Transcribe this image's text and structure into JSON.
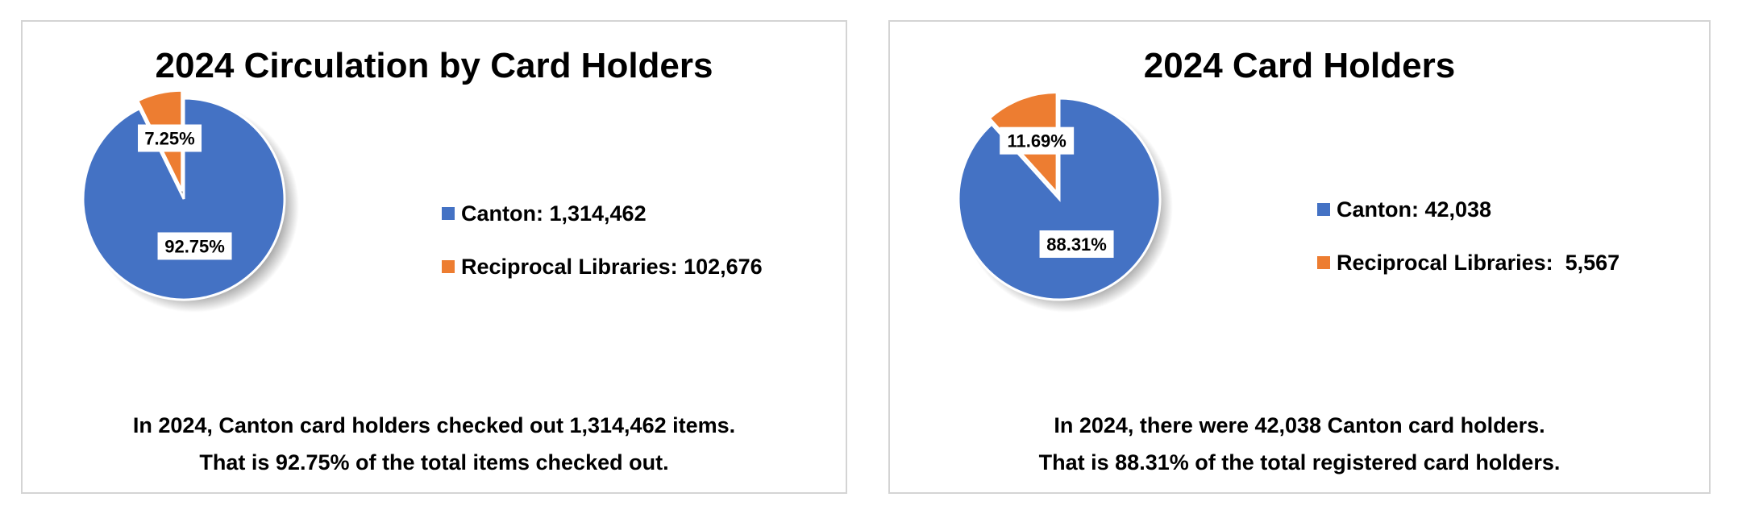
{
  "charts": [
    {
      "title": "2024 Circulation by Card Holders",
      "legend": [
        "Canton: 1,314,462",
        "Reciprocal Libraries: 102,676"
      ],
      "caption": [
        "In 2024, Canton card holders checked out 1,314,462 items.",
        "That is 92.75% of the total items checked out."
      ]
    },
    {
      "title": "2024 Card Holders",
      "legend": [
        "Canton: 42,038",
        "Reciprocal Libraries:  5,567"
      ],
      "caption": [
        "In 2024, there were 42,038 Canton card holders.",
        "That is 88.31% of the total registered card holders."
      ]
    }
  ],
  "chart_data": [
    {
      "type": "pie",
      "title": "2024 Circulation by Card Holders",
      "categories": [
        "Canton",
        "Reciprocal Libraries"
      ],
      "values": [
        1314462,
        102676
      ],
      "percent_labels": [
        "92.75%",
        "7.25%"
      ],
      "colors": [
        "#4472C4",
        "#ED7D31"
      ],
      "legend_position": "right"
    },
    {
      "type": "pie",
      "title": "2024 Card Holders",
      "categories": [
        "Canton",
        "Reciprocal Libraries"
      ],
      "values": [
        42038,
        5567
      ],
      "percent_labels": [
        "88.31%",
        "11.69%"
      ],
      "colors": [
        "#4472C4",
        "#ED7D31"
      ],
      "legend_position": "right"
    }
  ]
}
